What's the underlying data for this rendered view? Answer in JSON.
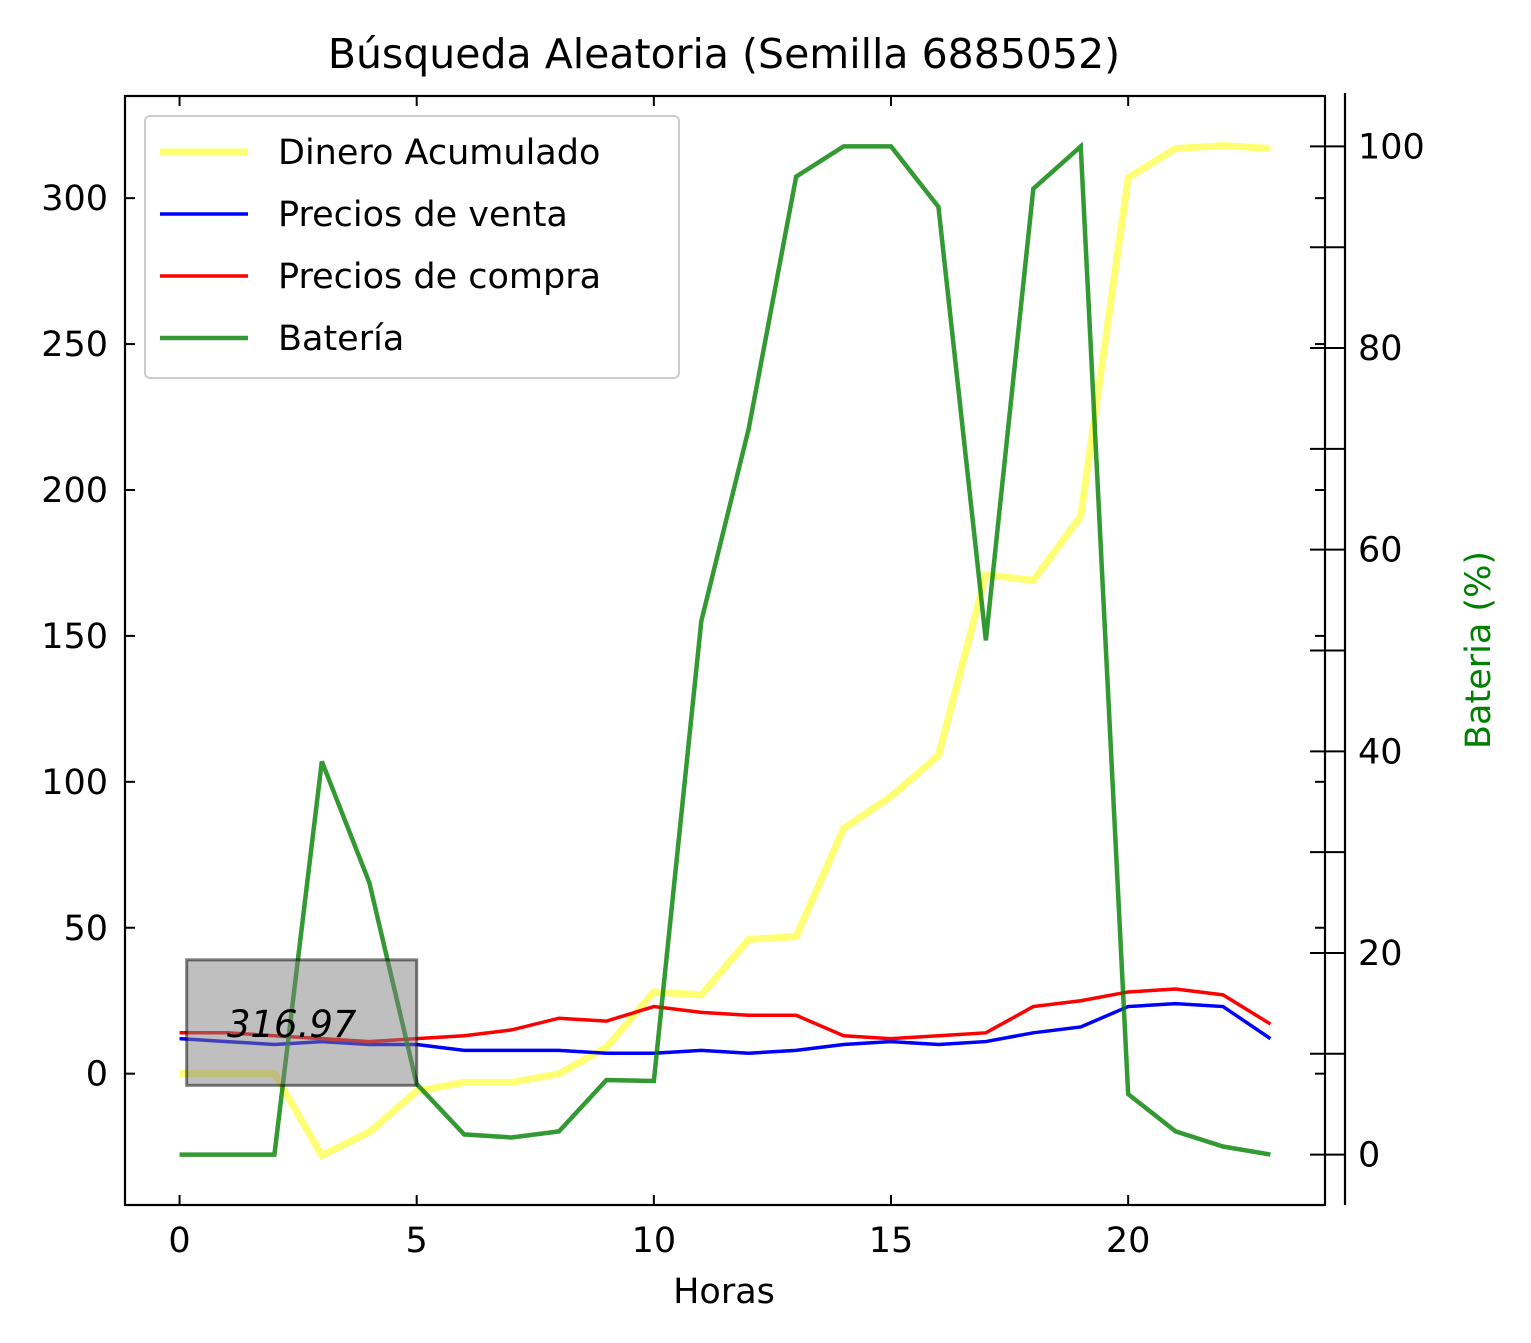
{
  "chart_data": {
    "type": "line",
    "title": "Búsqueda Aleatoria (Semilla 6885052)",
    "xlabel": "Horas",
    "ylabel": "",
    "y2label": "Bateria (%)",
    "xlim": [
      -1.15,
      24.15
    ],
    "ylim": [
      -45,
      335
    ],
    "y2lim": [
      -5,
      105
    ],
    "xticks": [
      0,
      5,
      10,
      15,
      20
    ],
    "yticks": [
      0,
      50,
      100,
      150,
      200,
      250,
      300
    ],
    "y2ticks": [
      0,
      20,
      40,
      60,
      80,
      100
    ],
    "grid": false,
    "legend_position": "upper left",
    "x": [
      0,
      1,
      2,
      3,
      4,
      5,
      6,
      7,
      8,
      9,
      10,
      11,
      12,
      13,
      14,
      15,
      16,
      17,
      18,
      19,
      20,
      21,
      22,
      23
    ],
    "series": [
      {
        "name": "Dinero Acumulado",
        "axis": "left",
        "color": "#ffff00",
        "opacity": 0.55,
        "width": 7,
        "values": [
          0,
          0,
          0,
          -28,
          -20,
          -6,
          -3,
          -3,
          0,
          9,
          28,
          27,
          46,
          47,
          84,
          95,
          109,
          171,
          169,
          191,
          307,
          317,
          318,
          317
        ]
      },
      {
        "name": "Precios de venta",
        "axis": "left",
        "color": "#0000ff",
        "opacity": 1,
        "width": 3.5,
        "values": [
          12,
          11,
          10,
          11,
          10,
          10,
          8,
          8,
          8,
          7,
          7,
          8,
          7,
          8,
          10,
          11,
          10,
          11,
          14,
          16,
          23,
          24,
          23,
          12
        ]
      },
      {
        "name": "Precios de compra",
        "axis": "left",
        "color": "#ff0000",
        "opacity": 1,
        "width": 3.5,
        "values": [
          14,
          14,
          13,
          12,
          11,
          12,
          13,
          15,
          19,
          18,
          23,
          21,
          20,
          20,
          13,
          12,
          13,
          14,
          23,
          25,
          28,
          29,
          27,
          17
        ]
      },
      {
        "name": "Batería",
        "axis": "right",
        "color": "#008000",
        "opacity": 0.8,
        "width": 4.5,
        "values": [
          0,
          0,
          0,
          39,
          27,
          7,
          2,
          1.7,
          2.3,
          7.4,
          7.3,
          52.9,
          72,
          97,
          100,
          100,
          94,
          51,
          95.8,
          100,
          6,
          2.3,
          0.8,
          0
        ]
      }
    ],
    "annotation": {
      "text": "316.97",
      "x0": 0.15,
      "x1": 5,
      "y0": -4,
      "y1": 39,
      "text_x": 1,
      "text_y": 17
    }
  }
}
